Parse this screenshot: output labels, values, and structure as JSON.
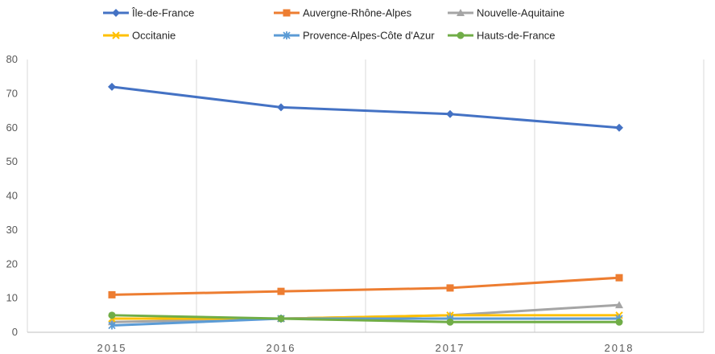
{
  "chart_data": {
    "type": "line",
    "title": "",
    "xlabel": "",
    "ylabel": "",
    "categories": [
      "2015",
      "2016",
      "2017",
      "2018"
    ],
    "ylim": [
      0,
      80
    ],
    "yticks": [
      0,
      10,
      20,
      30,
      40,
      50,
      60,
      70,
      80
    ],
    "grid": "vertical",
    "legend_position": "top",
    "series": [
      {
        "name": "Île-de-France",
        "values": [
          72,
          66,
          64,
          60
        ],
        "color": "#4472C4",
        "marker": "diamond"
      },
      {
        "name": "Auvergne-Rhône-Alpes",
        "values": [
          11,
          12,
          13,
          16
        ],
        "color": "#ED7D31",
        "marker": "square"
      },
      {
        "name": "Nouvelle-Aquitaine",
        "values": [
          3,
          4,
          5,
          8
        ],
        "color": "#A5A5A5",
        "marker": "triangle"
      },
      {
        "name": "Occitanie",
        "values": [
          4,
          4,
          5,
          5
        ],
        "color": "#FFC000",
        "marker": "x"
      },
      {
        "name": "Provence-Alpes-Côte d'Azur",
        "values": [
          2,
          4,
          4,
          4
        ],
        "color": "#5B9BD5",
        "marker": "star"
      },
      {
        "name": "Hauts-de-France",
        "values": [
          5,
          4,
          3,
          3
        ],
        "color": "#70AD47",
        "marker": "circle"
      }
    ]
  }
}
